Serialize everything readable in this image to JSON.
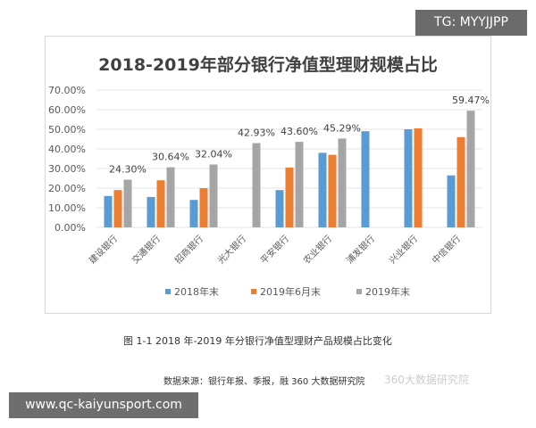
{
  "overlay": {
    "tg": "TG: MYYJJPP",
    "url": "www.qc-kaiyunsport.com",
    "watermark": "360大数据研究院"
  },
  "caption": "图 1-1  2018 年-2019 年分银行净值型理财产品规模占比变化",
  "source": "数据来源：银行年报、季报，融 360 大数据研究院",
  "chart_data": {
    "type": "bar",
    "title": "2018-2019年部分银行净值型理财规模占比",
    "categories": [
      "建设银行",
      "交通银行",
      "招商银行",
      "光大银行",
      "平安银行",
      "农业银行",
      "浦发银行",
      "兴业银行",
      "中信银行"
    ],
    "series": [
      {
        "name": "2018年末",
        "color": "#5b9bd5",
        "values": [
          16,
          15.5,
          14,
          null,
          19,
          38,
          49,
          50,
          26.5
        ]
      },
      {
        "name": "2019年6月末",
        "color": "#ed7d31",
        "values": [
          19,
          24,
          20,
          null,
          30.5,
          37,
          null,
          50.5,
          46
        ]
      },
      {
        "name": "2019年末",
        "color": "#a5a5a5",
        "values": [
          24.3,
          30.64,
          32.04,
          42.93,
          43.6,
          45.29,
          null,
          null,
          59.47
        ]
      }
    ],
    "data_labels": [
      "24.30%",
      "30.64%",
      "32.04%",
      "42.93%",
      "43.60%",
      "45.29%",
      null,
      null,
      "59.47%"
    ],
    "yticks": [
      "0.00%",
      "10.00%",
      "20.00%",
      "30.00%",
      "40.00%",
      "50.00%",
      "60.00%",
      "70.00%"
    ],
    "ylim": [
      0,
      70
    ],
    "grid": true,
    "legend": "bottom"
  }
}
